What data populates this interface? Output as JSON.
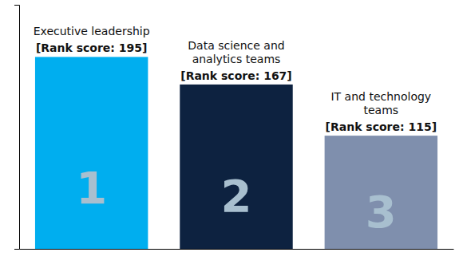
{
  "chart_data": {
    "type": "bar",
    "categories": [
      "Executive leadership",
      "Data science and\nanalytics teams",
      "IT and technology\nteams"
    ],
    "values": [
      195,
      167,
      115
    ],
    "value_labels": [
      "[Rank score: 195]",
      "[Rank score: 167]",
      "[Rank score: 115]"
    ],
    "annotations": [
      "1",
      "2",
      "3"
    ],
    "colors": [
      "#00AEEF",
      "#0D2240",
      "#7F8FAD"
    ],
    "ylim": [
      0,
      248
    ],
    "data_labels": true,
    "tick_labels": false,
    "grid": false
  }
}
